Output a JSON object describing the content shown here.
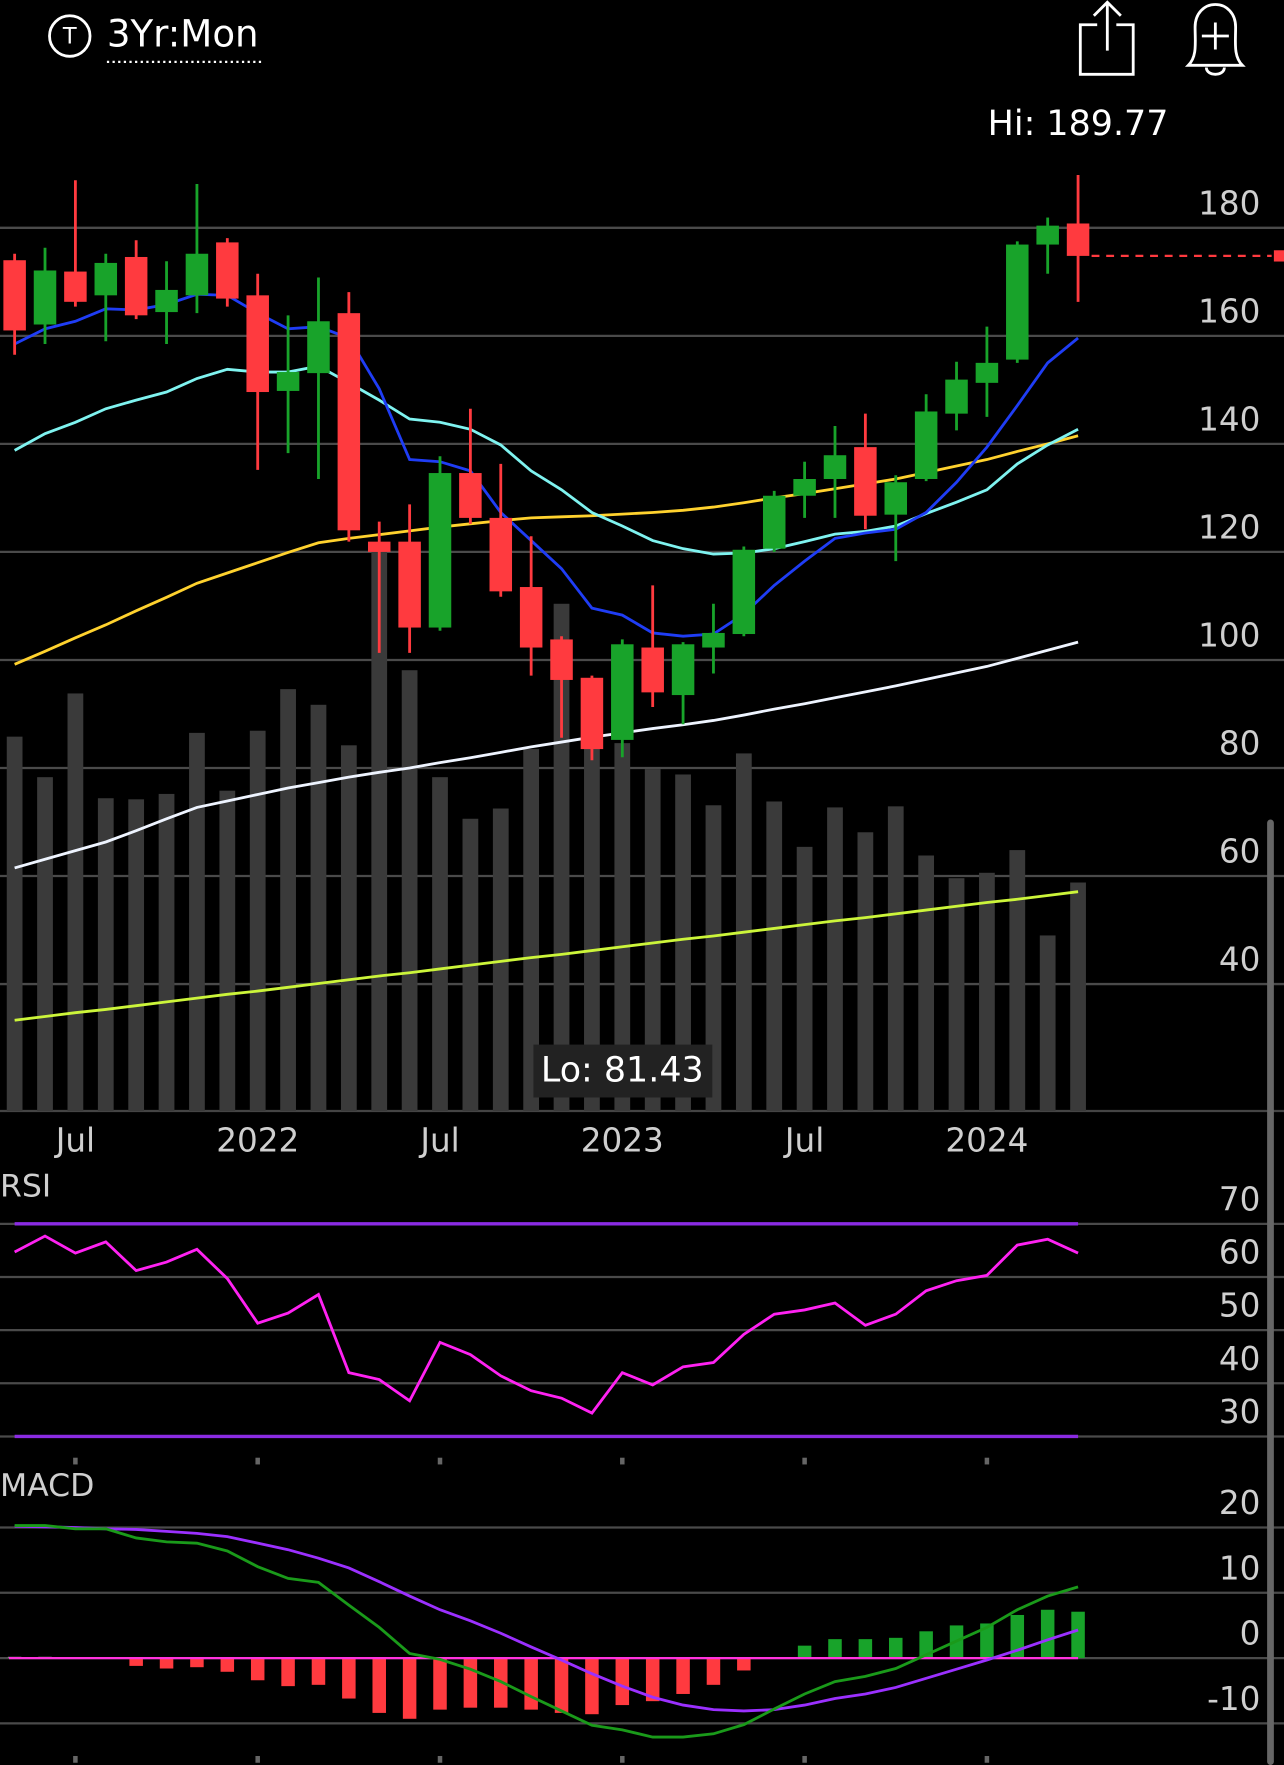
{
  "header": {
    "icon_label": "T",
    "period": "3Yr:Mon"
  },
  "chart_data": [
    {
      "type": "candlestick",
      "categories": [
        null,
        null,
        "Jul",
        null,
        null,
        null,
        null,
        null,
        "2022",
        null,
        null,
        null,
        null,
        null,
        "Jul",
        null,
        null,
        null,
        null,
        null,
        "2023",
        null,
        null,
        null,
        null,
        null,
        "Jul",
        null,
        null,
        null,
        null,
        null,
        "2024",
        null,
        null,
        null
      ],
      "open": [
        174.0,
        162.1,
        171.9,
        167.5,
        174.6,
        164.4,
        167.5,
        177.3,
        167.5,
        149.8,
        153.1,
        164.2,
        121.9,
        121.9,
        106.0,
        134.6,
        126.3,
        113.5,
        103.8,
        96.7,
        85.2,
        102.3,
        93.5,
        102.3,
        104.8,
        120.6,
        130.4,
        133.5,
        139.4,
        126.9,
        133.5,
        145.6,
        151.3,
        155.6,
        176.9,
        180.8
      ],
      "high": [
        175.2,
        176.3,
        188.8,
        175.2,
        177.7,
        173.8,
        188.1,
        178.1,
        171.5,
        163.8,
        170.8,
        168.1,
        125.6,
        128.8,
        137.7,
        146.5,
        136.3,
        122.9,
        104.4,
        97.1,
        103.8,
        113.8,
        103.3,
        110.4,
        121.0,
        131.3,
        136.7,
        143.3,
        145.6,
        134.2,
        149.2,
        155.2,
        161.7,
        177.5,
        181.9,
        189.77
      ],
      "low": [
        156.5,
        158.5,
        165.4,
        159.0,
        163.1,
        158.5,
        164.2,
        165.4,
        135.2,
        138.3,
        133.5,
        121.9,
        101.3,
        101.3,
        105.4,
        125.2,
        111.7,
        97.1,
        85.6,
        81.43,
        82.0,
        91.3,
        88.1,
        97.5,
        104.4,
        120.0,
        126.3,
        126.3,
        124.2,
        118.3,
        133.1,
        142.5,
        145.0,
        155.0,
        171.5,
        166.3
      ],
      "close": [
        161.0,
        172.1,
        166.3,
        173.5,
        163.8,
        168.5,
        175.2,
        166.9,
        149.6,
        153.3,
        162.7,
        124.0,
        120.0,
        106.0,
        134.6,
        126.3,
        112.7,
        102.3,
        96.3,
        83.5,
        102.9,
        94.0,
        102.9,
        105.0,
        120.4,
        130.4,
        133.5,
        137.9,
        126.7,
        132.9,
        146.0,
        151.9,
        155.0,
        176.9,
        180.4,
        174.8
      ],
      "up_color": "#18a32a",
      "down_color": "#ff3a3f",
      "volume": {
        "color": "#3a3a3a",
        "values": [
          85.8,
          78.3,
          93.8,
          74.4,
          74.2,
          75.2,
          86.5,
          75.8,
          86.9,
          94.6,
          91.7,
          84.2,
          120.0,
          98.1,
          78.3,
          70.6,
          72.5,
          83.5,
          110.4,
          86.7,
          84.6,
          79.8,
          78.8,
          73.1,
          82.7,
          73.8,
          65.4,
          72.7,
          68.1,
          72.9,
          63.8,
          59.6,
          60.6,
          64.8,
          49.0,
          58.8
        ]
      },
      "lines": [
        {
          "color": "#ccf53a",
          "values": [
            33.3,
            34.0,
            34.7,
            35.3,
            36.0,
            36.7,
            37.4,
            38.1,
            38.7,
            39.4,
            40.1,
            40.8,
            41.5,
            42.1,
            42.8,
            43.5,
            44.2,
            44.9,
            45.5,
            46.2,
            46.9,
            47.6,
            48.3,
            48.9,
            49.6,
            50.3,
            51.0,
            51.7,
            52.3,
            53.0,
            53.7,
            54.4,
            55.1,
            55.7,
            56.4,
            57.1
          ]
        },
        {
          "color": "#eef4ff",
          "values": [
            61.5,
            63.1,
            64.7,
            66.3,
            68.4,
            70.6,
            72.7,
            73.9,
            75.1,
            76.3,
            77.3,
            78.3,
            79.2,
            80.0,
            81.0,
            81.9,
            82.9,
            83.9,
            84.8,
            85.7,
            86.5,
            87.3,
            88.0,
            88.8,
            89.8,
            90.9,
            91.9,
            93.0,
            94.1,
            95.2,
            96.4,
            97.6,
            98.8,
            100.3,
            101.8,
            103.3
          ]
        },
        {
          "color": "#ffd22e",
          "values": [
            99.2,
            101.6,
            104.1,
            106.5,
            109.1,
            111.6,
            114.2,
            116.1,
            118.0,
            119.9,
            121.7,
            122.5,
            123.2,
            123.9,
            124.6,
            125.2,
            125.8,
            126.3,
            126.5,
            126.7,
            127.0,
            127.3,
            127.7,
            128.3,
            129.1,
            130.0,
            130.8,
            131.7,
            132.6,
            133.5,
            134.7,
            135.9,
            137.1,
            138.6,
            140.0,
            141.5
          ]
        },
        {
          "color": "#7ff3f0",
          "values": [
            138.8,
            141.9,
            144.0,
            146.5,
            148.1,
            149.6,
            152.1,
            153.8,
            153.3,
            153.3,
            154.4,
            151.3,
            148.1,
            144.6,
            144.0,
            142.7,
            139.8,
            135.0,
            131.5,
            127.3,
            124.8,
            122.1,
            120.6,
            119.6,
            119.8,
            120.6,
            121.9,
            123.3,
            123.8,
            124.8,
            127.1,
            129.2,
            131.5,
            136.3,
            139.8,
            142.7
          ]
        },
        {
          "color": "#1f3df5",
          "values": [
            158.5,
            161.3,
            162.7,
            165.0,
            164.8,
            165.8,
            167.7,
            167.5,
            164.2,
            161.3,
            161.7,
            159.6,
            150.2,
            137.1,
            136.7,
            135.0,
            127.3,
            122.1,
            116.9,
            109.6,
            108.3,
            105.0,
            104.4,
            104.8,
            108.5,
            113.8,
            118.3,
            122.5,
            123.5,
            124.2,
            127.3,
            132.9,
            139.4,
            147.1,
            155.0,
            159.6
          ]
        }
      ],
      "high_label": "Hi: 189.77",
      "low_label": "Lo: 81.43",
      "ylim": [
        16.5,
        193
      ],
      "yticks": [
        40,
        60,
        80,
        100,
        120,
        140,
        160,
        180
      ],
      "grid": true
    },
    {
      "type": "rsi",
      "title": "RSI",
      "color": "#ff22f2",
      "values": [
        64.7,
        67.7,
        64.5,
        66.6,
        61.2,
        62.8,
        65.2,
        59.7,
        51.3,
        53.2,
        56.7,
        42.0,
        40.7,
        36.7,
        47.7,
        45.4,
        41.4,
        38.6,
        37.2,
        34.4,
        42.0,
        39.7,
        43.1,
        43.9,
        49.2,
        53.0,
        53.8,
        55.1,
        50.9,
        53.0,
        57.4,
        59.3,
        60.3,
        66.0,
        67.1,
        64.5
      ],
      "reference_lines": {
        "color": "#8a2be2",
        "values": [
          30,
          70
        ]
      },
      "ylim": [
        26,
        80
      ],
      "yticks": [
        30,
        40,
        50,
        60,
        70
      ],
      "grid": true
    },
    {
      "type": "macd",
      "title": "MACD",
      "macd": {
        "color": "#1a9a1a",
        "values": [
          20.3,
          20.3,
          19.8,
          19.8,
          18.4,
          17.8,
          17.6,
          16.4,
          14.0,
          12.2,
          11.6,
          8.1,
          4.7,
          0.7,
          -0.2,
          -1.7,
          -3.6,
          -5.9,
          -8.1,
          -10.3,
          -11.0,
          -12.1,
          -12.1,
          -11.6,
          -10.2,
          -7.8,
          -5.5,
          -3.6,
          -2.8,
          -1.6,
          0.5,
          2.6,
          4.7,
          7.4,
          9.5,
          10.9
        ]
      },
      "signal": {
        "color": "#9b30ff",
        "values": [
          20.2,
          20.1,
          20.0,
          19.8,
          19.7,
          19.4,
          19.1,
          18.6,
          17.6,
          16.6,
          15.3,
          13.8,
          11.7,
          9.5,
          7.4,
          5.7,
          3.8,
          1.7,
          -0.3,
          -2.4,
          -4.3,
          -6.0,
          -7.2,
          -7.9,
          -8.1,
          -7.9,
          -7.2,
          -6.2,
          -5.5,
          -4.5,
          -3.1,
          -1.7,
          -0.3,
          1.2,
          2.8,
          4.3
        ]
      },
      "histogram": {
        "up_color": "#18a32a",
        "down_color": "#ff3a3f",
        "values": [
          0.2,
          0.2,
          0,
          0,
          -1.2,
          -1.6,
          -1.4,
          -2.1,
          -3.4,
          -4.3,
          -4.1,
          -6.2,
          -8.4,
          -9.3,
          -7.9,
          -7.6,
          -7.6,
          -7.9,
          -8.4,
          -8.6,
          -7.2,
          -6.6,
          -5.5,
          -4.1,
          -1.9,
          -0.1,
          1.9,
          2.9,
          2.9,
          3.1,
          4.1,
          5.0,
          5.3,
          6.6,
          7.4,
          7.1
        ]
      },
      "ylim": [
        -15,
        23
      ],
      "yticks": [
        -10,
        0,
        10,
        20
      ],
      "grid": true
    }
  ]
}
